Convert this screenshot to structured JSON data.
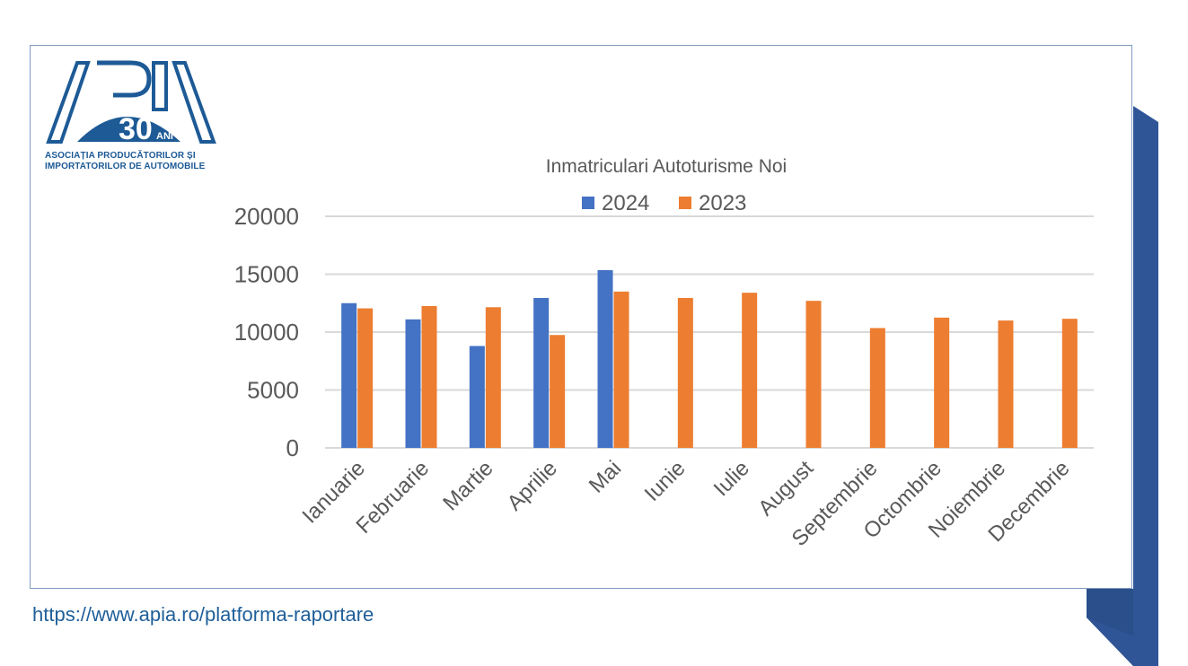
{
  "logo": {
    "brand": "APIA",
    "anniversary_number": "30",
    "anniversary_suffix": "ANI",
    "line1": "ASOCIAȚIA PRODUCĂTORILOR ȘI",
    "line2": "IMPORTATORILOR DE AUTOMOBILE"
  },
  "footer": {
    "url": "https://www.apia.ro/platforma-raportare"
  },
  "colors": {
    "brand_blue": "#1d5a96",
    "accent_dark_blue": "#2f5597"
  },
  "chart_data": {
    "type": "bar",
    "title": "Inmatriculari Autoturisme Noi",
    "xlabel": "",
    "ylabel": "",
    "ylim": [
      0,
      20000
    ],
    "yticks": [
      "0",
      "5000",
      "10000",
      "15000",
      "20000"
    ],
    "grid": true,
    "legend_position": "top",
    "categories": [
      "Ianuarie",
      "Februarie",
      "Martie",
      "Aprilie",
      "Mai",
      "Iunie",
      "Iulie",
      "August",
      "Septembrie",
      "Octombrie",
      "Noiembrie",
      "Decembrie"
    ],
    "series": [
      {
        "name": "2024",
        "color": "#4472c4",
        "values": [
          12500,
          11100,
          8800,
          12950,
          15350,
          null,
          null,
          null,
          null,
          null,
          null,
          null
        ]
      },
      {
        "name": "2023",
        "color": "#ed7d31",
        "values": [
          12050,
          12250,
          12150,
          9750,
          13500,
          12950,
          13400,
          12700,
          10350,
          11250,
          11000,
          11150
        ]
      }
    ]
  }
}
